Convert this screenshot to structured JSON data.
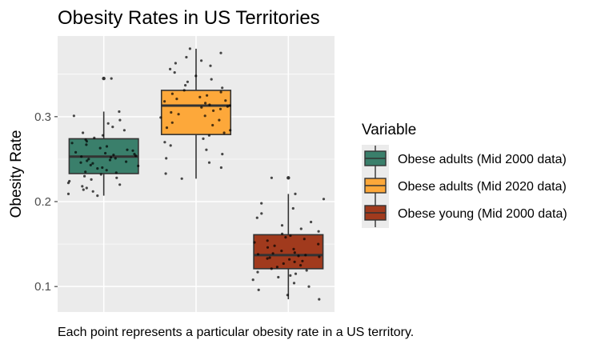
{
  "chart_data": {
    "type": "boxplot",
    "title": "Obesity Rates in US Territories",
    "xlabel": "",
    "ylabel": "Obesity Rate",
    "ylim": [
      0.07,
      0.395
    ],
    "yticks": [
      0.1,
      0.2,
      0.3
    ],
    "ytick_labels": [
      "0.1",
      "0.2",
      "0.3"
    ],
    "grid": true,
    "legend": {
      "title": "Variable",
      "position": "right"
    },
    "caption": "Each point represents a particular obesity rate in a US territory.",
    "series": [
      {
        "name": "Obese adults (Mid 2000 data)",
        "color": "#3a7f6b",
        "whisker_low": 0.207,
        "q1": 0.233,
        "median": 0.253,
        "q3": 0.274,
        "whisker_high": 0.306,
        "outliers": [
          0.345
        ],
        "points": [
          0.207,
          0.209,
          0.212,
          0.214,
          0.216,
          0.218,
          0.22,
          0.222,
          0.224,
          0.226,
          0.228,
          0.23,
          0.232,
          0.234,
          0.235,
          0.237,
          0.239,
          0.24,
          0.242,
          0.243,
          0.245,
          0.246,
          0.247,
          0.248,
          0.249,
          0.25,
          0.251,
          0.252,
          0.253,
          0.254,
          0.255,
          0.256,
          0.257,
          0.258,
          0.26,
          0.261,
          0.263,
          0.265,
          0.267,
          0.269,
          0.271,
          0.273,
          0.275,
          0.278,
          0.281,
          0.284,
          0.288,
          0.292,
          0.296,
          0.301,
          0.306,
          0.345
        ]
      },
      {
        "name": "Obese adults (Mid 2020 data)",
        "color": "#fda83a",
        "whisker_low": 0.227,
        "q1": 0.279,
        "median": 0.313,
        "q3": 0.331,
        "whisker_high": 0.38,
        "outliers": [],
        "points": [
          0.227,
          0.233,
          0.24,
          0.246,
          0.251,
          0.256,
          0.261,
          0.266,
          0.27,
          0.274,
          0.278,
          0.281,
          0.284,
          0.287,
          0.29,
          0.293,
          0.296,
          0.299,
          0.301,
          0.303,
          0.305,
          0.307,
          0.309,
          0.311,
          0.312,
          0.313,
          0.314,
          0.316,
          0.318,
          0.319,
          0.321,
          0.323,
          0.325,
          0.327,
          0.329,
          0.331,
          0.334,
          0.337,
          0.341,
          0.344,
          0.348,
          0.352,
          0.356,
          0.36,
          0.363,
          0.366,
          0.37,
          0.375,
          0.38
        ]
      },
      {
        "name": "Obese young (Mid 2000 data)",
        "color": "#a13a1d",
        "whisker_low": 0.085,
        "q1": 0.121,
        "median": 0.137,
        "q3": 0.161,
        "whisker_high": 0.209,
        "outliers": [
          0.228
        ],
        "points": [
          0.085,
          0.09,
          0.096,
          0.1,
          0.104,
          0.108,
          0.111,
          0.113,
          0.115,
          0.117,
          0.119,
          0.121,
          0.123,
          0.125,
          0.127,
          0.129,
          0.13,
          0.132,
          0.133,
          0.134,
          0.135,
          0.136,
          0.137,
          0.138,
          0.139,
          0.14,
          0.142,
          0.144,
          0.146,
          0.148,
          0.15,
          0.152,
          0.154,
          0.156,
          0.158,
          0.16,
          0.162,
          0.165,
          0.168,
          0.172,
          0.176,
          0.181,
          0.186,
          0.192,
          0.198,
          0.203,
          0.209,
          0.228
        ]
      }
    ]
  }
}
